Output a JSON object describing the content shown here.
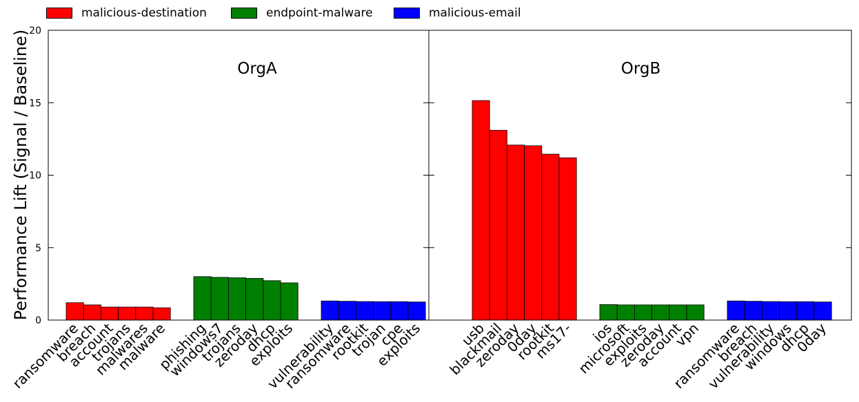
{
  "chart_data": {
    "type": "bar",
    "ylabel": "Performance Lift (Signal / Baseline)",
    "ylim": [
      0,
      20
    ],
    "yticks": [
      0,
      5,
      10,
      15,
      20
    ],
    "series_names": [
      "malicious-destination",
      "endpoint-malware",
      "malicious-email"
    ],
    "colors": {
      "malicious-destination": "#ff0000",
      "endpoint-malware": "#008000",
      "malicious-email": "#0000ff"
    },
    "panels": [
      {
        "title": "OrgA",
        "groups": [
          {
            "series": "malicious-destination",
            "categories": [
              "ransomware",
              "breach",
              "account",
              "trojans",
              "malwares",
              "malware"
            ],
            "values": [
              1.2,
              1.05,
              0.9,
              0.9,
              0.9,
              0.85
            ]
          },
          {
            "series": "endpoint-malware",
            "categories": [
              "phishing",
              "windows7",
              "trojans",
              "zeroday",
              "dhcp",
              "exploits"
            ],
            "values": [
              3.0,
              2.95,
              2.92,
              2.88,
              2.72,
              2.57
            ]
          },
          {
            "series": "malicious-email",
            "categories": [
              "vulnerability",
              "ransomware",
              "rootkit",
              "trojan",
              "cpe",
              "exploits"
            ],
            "values": [
              1.32,
              1.3,
              1.28,
              1.27,
              1.27,
              1.25
            ]
          }
        ]
      },
      {
        "title": "OrgB",
        "groups": [
          {
            "series": "malicious-destination",
            "categories": [
              "usb",
              "blackmail",
              "zeroday",
              "0day",
              "rootkit",
              "ms17-"
            ],
            "values": [
              15.15,
              13.1,
              12.08,
              12.03,
              11.45,
              11.2
            ]
          },
          {
            "series": "endpoint-malware",
            "categories": [
              "ios",
              "microsoft",
              "exploits",
              "zeroday",
              "account",
              "vpn"
            ],
            "values": [
              1.07,
              1.05,
              1.05,
              1.05,
              1.05,
              1.05
            ]
          },
          {
            "series": "malicious-email",
            "categories": [
              "ransomware",
              "breach",
              "vulnerability",
              "windows",
              "dhcp",
              "0day"
            ],
            "values": [
              1.32,
              1.3,
              1.28,
              1.27,
              1.27,
              1.25
            ]
          }
        ]
      }
    ]
  }
}
